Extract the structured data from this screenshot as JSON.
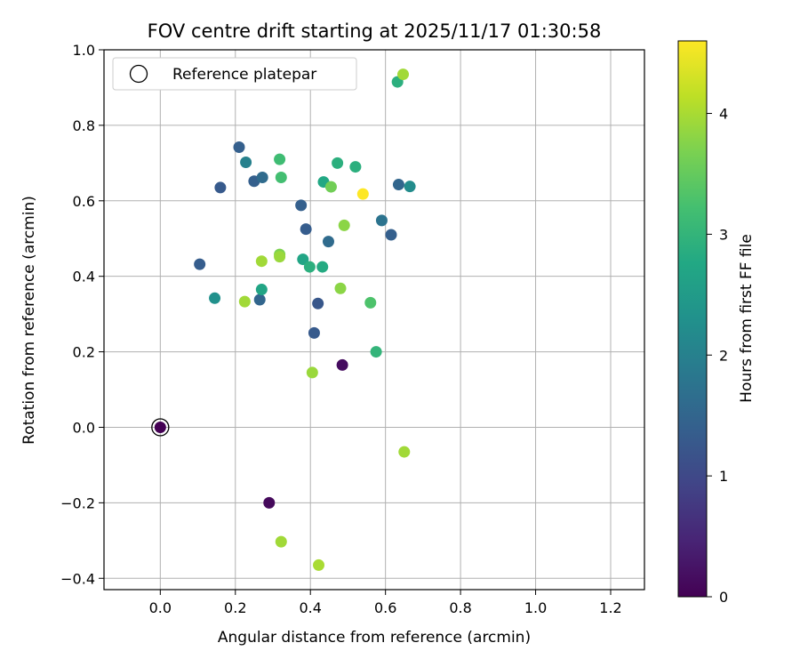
{
  "chart_data": {
    "type": "scatter",
    "title": "FOV centre drift starting at 2025/11/17 01:30:58",
    "xlabel": "Angular distance from reference (arcmin)",
    "ylabel": "Rotation from reference (arcmin)",
    "xlim": [
      -0.15,
      1.29
    ],
    "ylim": [
      -0.43,
      1.0
    ],
    "xticks": [
      0.0,
      0.2,
      0.4,
      0.6,
      0.8,
      1.0,
      1.2
    ],
    "xtick_labels": [
      "0.0",
      "0.2",
      "0.4",
      "0.6",
      "0.8",
      "1.0",
      "1.2"
    ],
    "yticks": [
      -0.4,
      -0.2,
      0.0,
      0.2,
      0.4,
      0.6,
      0.8,
      1.0
    ],
    "ytick_labels": [
      "−0.4",
      "−0.2",
      "0.0",
      "0.2",
      "0.4",
      "0.6",
      "0.8",
      "1.0"
    ],
    "grid": true,
    "legend": {
      "placement": "top-left",
      "label": "Reference platepar"
    },
    "reference_point": {
      "x": 0.0,
      "y": 0.0
    },
    "colorbar": {
      "label": "Hours from first FF file",
      "colormap": "viridis",
      "range": [
        0,
        4.6
      ],
      "ticks": [
        0,
        1,
        2,
        3,
        4
      ],
      "tick_labels": [
        "0",
        "1",
        "2",
        "3",
        "4"
      ]
    },
    "points": [
      {
        "x": 0.0,
        "y": 0.0,
        "hours": 0.0
      },
      {
        "x": 0.29,
        "y": -0.2,
        "hours": 0.1
      },
      {
        "x": 0.485,
        "y": 0.165,
        "hours": 0.15
      },
      {
        "x": 0.41,
        "y": 0.25,
        "hours": 1.3
      },
      {
        "x": 0.42,
        "y": 0.328,
        "hours": 1.25
      },
      {
        "x": 0.105,
        "y": 0.432,
        "hours": 1.35
      },
      {
        "x": 0.16,
        "y": 0.635,
        "hours": 1.3
      },
      {
        "x": 0.21,
        "y": 0.742,
        "hours": 1.4
      },
      {
        "x": 0.25,
        "y": 0.652,
        "hours": 1.4
      },
      {
        "x": 0.265,
        "y": 0.338,
        "hours": 1.5
      },
      {
        "x": 0.272,
        "y": 0.662,
        "hours": 1.6
      },
      {
        "x": 0.375,
        "y": 0.588,
        "hours": 1.4
      },
      {
        "x": 0.388,
        "y": 0.525,
        "hours": 1.35
      },
      {
        "x": 0.448,
        "y": 0.492,
        "hours": 1.6
      },
      {
        "x": 0.615,
        "y": 0.51,
        "hours": 1.4
      },
      {
        "x": 0.635,
        "y": 0.643,
        "hours": 1.5
      },
      {
        "x": 0.59,
        "y": 0.548,
        "hours": 1.75
      },
      {
        "x": 0.228,
        "y": 0.702,
        "hours": 2.0
      },
      {
        "x": 0.145,
        "y": 0.342,
        "hours": 2.3
      },
      {
        "x": 0.665,
        "y": 0.638,
        "hours": 2.2
      },
      {
        "x": 0.27,
        "y": 0.365,
        "hours": 2.7
      },
      {
        "x": 0.38,
        "y": 0.445,
        "hours": 2.7
      },
      {
        "x": 0.398,
        "y": 0.425,
        "hours": 2.9
      },
      {
        "x": 0.432,
        "y": 0.425,
        "hours": 2.8
      },
      {
        "x": 0.435,
        "y": 0.65,
        "hours": 2.75
      },
      {
        "x": 0.472,
        "y": 0.7,
        "hours": 2.9
      },
      {
        "x": 0.52,
        "y": 0.69,
        "hours": 2.9
      },
      {
        "x": 0.632,
        "y": 0.915,
        "hours": 2.9
      },
      {
        "x": 0.575,
        "y": 0.2,
        "hours": 3.0
      },
      {
        "x": 0.318,
        "y": 0.71,
        "hours": 3.15
      },
      {
        "x": 0.322,
        "y": 0.662,
        "hours": 3.2
      },
      {
        "x": 0.56,
        "y": 0.33,
        "hours": 3.3
      },
      {
        "x": 0.455,
        "y": 0.637,
        "hours": 3.6
      },
      {
        "x": 0.318,
        "y": 0.458,
        "hours": 3.7
      },
      {
        "x": 0.48,
        "y": 0.368,
        "hours": 3.8
      },
      {
        "x": 0.49,
        "y": 0.535,
        "hours": 3.8
      },
      {
        "x": 0.27,
        "y": 0.44,
        "hours": 3.95
      },
      {
        "x": 0.225,
        "y": 0.333,
        "hours": 3.95
      },
      {
        "x": 0.318,
        "y": 0.452,
        "hours": 3.9
      },
      {
        "x": 0.405,
        "y": 0.145,
        "hours": 3.9
      },
      {
        "x": 0.65,
        "y": -0.065,
        "hours": 3.95
      },
      {
        "x": 0.322,
        "y": -0.303,
        "hours": 3.95
      },
      {
        "x": 0.422,
        "y": -0.365,
        "hours": 4.0
      },
      {
        "x": 0.647,
        "y": 0.935,
        "hours": 3.95
      },
      {
        "x": 0.54,
        "y": 0.618,
        "hours": 4.6
      }
    ]
  }
}
